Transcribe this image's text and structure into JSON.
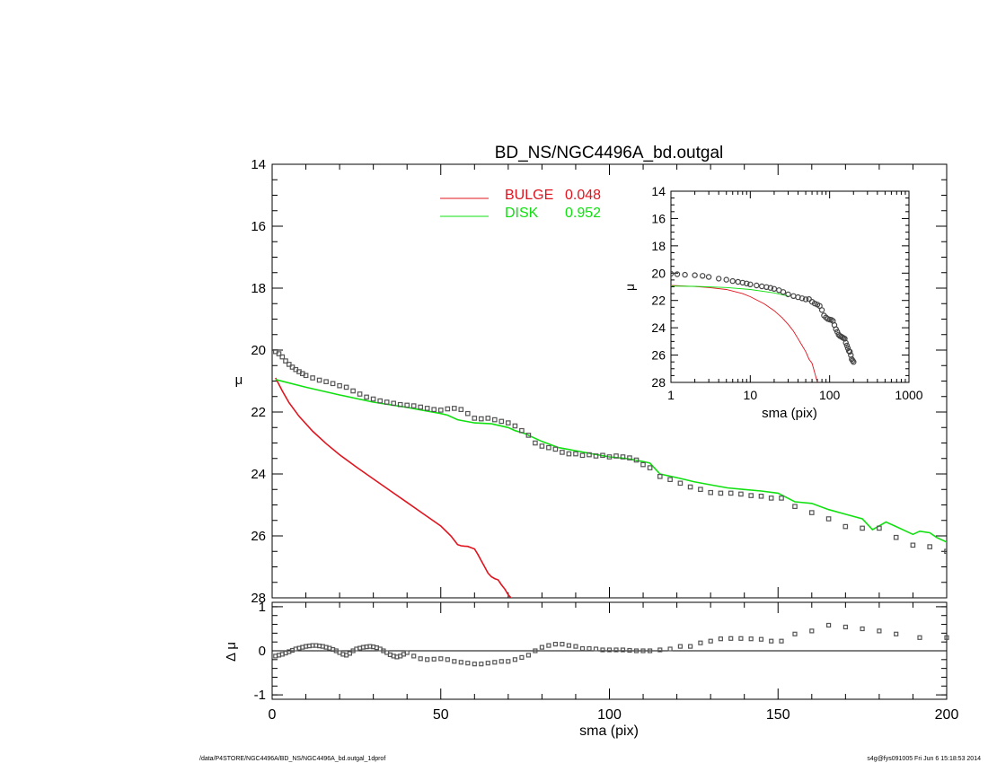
{
  "chart_data": [
    {
      "type": "scatter",
      "panel": "main",
      "title": "BD_NS/NGC4496A_bd.outgal",
      "xlabel": "",
      "ylabel": "μ",
      "xlim": [
        0,
        200
      ],
      "ylim": [
        28,
        14
      ],
      "y_inverted": true,
      "yticks": [
        "14",
        "16",
        "18",
        "20",
        "22",
        "24",
        "26",
        "28"
      ],
      "legend_placement": "top-center",
      "series": [
        {
          "name": "",
          "kind": "points",
          "marker": "open-square",
          "color": "#555555",
          "x": [
            1,
            2,
            3,
            4,
            5,
            6,
            7,
            8,
            9,
            10,
            12,
            14,
            16,
            18,
            20,
            22,
            24,
            26,
            28,
            30,
            32,
            34,
            36,
            38,
            40,
            42,
            44,
            46,
            48,
            50,
            52,
            54,
            56,
            58,
            60,
            62,
            64,
            66,
            68,
            70,
            72,
            74,
            76,
            78,
            80,
            82,
            84,
            86,
            88,
            90,
            92,
            94,
            96,
            98,
            100,
            102,
            104,
            106,
            108,
            110,
            112,
            115,
            118,
            121,
            124,
            127,
            130,
            133,
            136,
            139,
            142,
            145,
            148,
            151,
            155,
            160,
            165,
            170,
            175,
            180,
            185,
            190,
            195,
            200
          ],
          "y": [
            20.05,
            20.12,
            20.22,
            20.35,
            20.46,
            20.55,
            20.63,
            20.7,
            20.76,
            20.82,
            20.9,
            20.97,
            21.02,
            21.08,
            21.15,
            21.2,
            21.32,
            21.42,
            21.52,
            21.58,
            21.64,
            21.68,
            21.72,
            21.76,
            21.78,
            21.8,
            21.84,
            21.88,
            21.92,
            21.94,
            21.9,
            21.88,
            21.92,
            22.05,
            22.2,
            22.22,
            22.2,
            22.25,
            22.3,
            22.35,
            22.45,
            22.6,
            22.75,
            23.0,
            23.1,
            23.15,
            23.2,
            23.3,
            23.35,
            23.35,
            23.4,
            23.38,
            23.42,
            23.4,
            23.45,
            23.42,
            23.45,
            23.48,
            23.55,
            23.7,
            23.8,
            24.08,
            24.18,
            24.3,
            24.42,
            24.5,
            24.6,
            24.62,
            24.62,
            24.65,
            24.7,
            24.72,
            24.78,
            24.78,
            25.05,
            25.25,
            25.45,
            25.7,
            25.75,
            25.75,
            26.05,
            26.3,
            26.35,
            26.5
          ]
        },
        {
          "name": "BULGE",
          "kind": "line",
          "color": "#e0141e",
          "x": [
            1,
            3,
            5,
            8,
            12,
            16,
            20,
            25,
            30,
            35,
            40,
            45,
            50,
            53,
            55,
            56,
            57,
            58,
            59,
            60,
            61,
            62,
            63,
            64,
            65,
            66,
            67,
            68,
            69,
            70,
            71
          ],
          "y": [
            20.9,
            21.32,
            21.7,
            22.14,
            22.62,
            23.02,
            23.38,
            23.78,
            24.16,
            24.54,
            24.92,
            25.3,
            25.68,
            26.0,
            26.28,
            26.32,
            26.33,
            26.34,
            26.38,
            26.42,
            26.6,
            26.8,
            27.0,
            27.2,
            27.32,
            27.38,
            27.42,
            27.58,
            27.72,
            27.9,
            28.02
          ]
        },
        {
          "name": "DISK",
          "kind": "line",
          "color": "#10e010",
          "x": [
            1,
            10,
            20,
            30,
            40,
            45,
            50,
            52,
            55,
            60,
            65,
            70,
            72,
            75,
            80,
            85,
            90,
            95,
            100,
            105,
            110,
            112,
            115,
            120,
            125,
            130,
            135,
            140,
            145,
            150,
            155,
            160,
            165,
            170,
            175,
            178,
            182,
            185,
            190,
            192,
            195,
            197,
            200
          ],
          "y": [
            20.95,
            21.2,
            21.45,
            21.68,
            21.85,
            21.95,
            22.05,
            22.1,
            22.25,
            22.35,
            22.38,
            22.5,
            22.6,
            22.7,
            22.95,
            23.15,
            23.25,
            23.35,
            23.45,
            23.5,
            23.6,
            23.65,
            24.0,
            24.12,
            24.25,
            24.35,
            24.45,
            24.5,
            24.55,
            24.62,
            24.9,
            24.95,
            25.15,
            25.3,
            25.45,
            25.8,
            25.55,
            25.7,
            25.95,
            25.85,
            25.9,
            26.05,
            26.2
          ]
        }
      ],
      "legend": [
        {
          "label": "BULGE",
          "value": "0.048",
          "color": "#e0141e"
        },
        {
          "label": "DISK",
          "value": "0.952",
          "color": "#10e010"
        }
      ]
    },
    {
      "type": "scatter",
      "panel": "inset",
      "xlabel": "sma (pix)",
      "ylabel": "μ",
      "xscale": "log",
      "xlim": [
        1,
        1000
      ],
      "ylim": [
        28,
        14
      ],
      "y_inverted": true,
      "xticks": [
        "1",
        "10",
        "100",
        "1000"
      ],
      "yticks": [
        "14",
        "16",
        "18",
        "20",
        "22",
        "24",
        "26",
        "28"
      ],
      "series": [
        {
          "name": "",
          "kind": "points",
          "marker": "open-circle",
          "color": "#444444",
          "x": [
            1.0,
            1.2,
            1.5,
            2.0,
            2.5,
            3.0,
            4.0,
            5.0,
            6.0,
            7.0,
            8.0,
            9.0,
            10,
            12,
            14,
            16,
            18,
            20,
            23,
            26,
            30,
            35,
            40,
            45,
            50,
            55,
            60,
            65,
            70,
            75,
            80,
            85,
            90,
            95,
            100,
            105,
            110,
            115,
            120,
            125,
            130,
            135,
            140,
            145,
            150,
            155,
            160,
            165,
            170,
            175,
            180,
            185,
            190,
            195,
            200
          ],
          "y": [
            20.05,
            20.08,
            20.12,
            20.15,
            20.2,
            20.28,
            20.4,
            20.48,
            20.58,
            20.64,
            20.7,
            20.76,
            20.82,
            20.9,
            20.97,
            21.02,
            21.08,
            21.15,
            21.25,
            21.38,
            21.55,
            21.68,
            21.76,
            21.84,
            21.92,
            21.9,
            22.1,
            22.22,
            22.3,
            22.4,
            22.7,
            23.1,
            23.25,
            23.35,
            23.4,
            23.42,
            23.5,
            23.8,
            24.1,
            24.3,
            24.5,
            24.6,
            24.65,
            24.7,
            24.75,
            24.8,
            25.1,
            25.3,
            25.5,
            25.7,
            25.75,
            26.0,
            26.3,
            26.4,
            26.5
          ]
        },
        {
          "name": "",
          "kind": "line",
          "color": "#e0141e",
          "x": [
            1,
            2,
            3,
            5,
            8,
            10,
            15,
            20,
            25,
            30,
            35,
            40,
            45,
            50,
            55,
            60,
            65,
            70
          ],
          "y": [
            20.9,
            20.98,
            21.05,
            21.2,
            21.5,
            21.72,
            22.25,
            22.75,
            23.25,
            23.75,
            24.25,
            24.8,
            25.3,
            25.75,
            26.3,
            26.6,
            27.3,
            28.0
          ]
        },
        {
          "name": "",
          "kind": "line",
          "color": "#10e010",
          "x": [
            1,
            2,
            5,
            10,
            20,
            30
          ],
          "y": [
            20.95,
            20.97,
            21.05,
            21.2,
            21.45,
            21.68
          ]
        }
      ]
    },
    {
      "type": "scatter",
      "panel": "residual",
      "xlabel": "sma (pix)",
      "ylabel": "Δ μ",
      "xlim": [
        0,
        200
      ],
      "ylim": [
        -1.1,
        1.1
      ],
      "xticks": [
        "0",
        "50",
        "100",
        "150",
        "200"
      ],
      "yticks": [
        "-1",
        "0",
        "1"
      ],
      "zero_line": true,
      "series": [
        {
          "name": "",
          "kind": "points",
          "marker": "open-square",
          "color": "#555555",
          "x": [
            1,
            2,
            3,
            4,
            5,
            6,
            7,
            8,
            9,
            10,
            11,
            12,
            13,
            14,
            15,
            16,
            17,
            18,
            19,
            20,
            21,
            22,
            23,
            24,
            25,
            26,
            27,
            28,
            29,
            30,
            31,
            32,
            33,
            34,
            35,
            36,
            37,
            38,
            39,
            40,
            42,
            44,
            46,
            48,
            50,
            52,
            54,
            56,
            58,
            60,
            62,
            64,
            66,
            68,
            70,
            72,
            74,
            76,
            78,
            80,
            82,
            84,
            86,
            88,
            90,
            92,
            94,
            96,
            98,
            100,
            102,
            104,
            106,
            108,
            110,
            112,
            115,
            118,
            121,
            124,
            127,
            130,
            133,
            136,
            139,
            142,
            145,
            148,
            151,
            155,
            160,
            165,
            170,
            175,
            180,
            185,
            192,
            200
          ],
          "y": [
            -0.12,
            -0.1,
            -0.08,
            -0.05,
            -0.02,
            0.01,
            0.04,
            0.06,
            0.08,
            0.1,
            0.11,
            0.12,
            0.12,
            0.11,
            0.1,
            0.08,
            0.06,
            0.03,
            0.0,
            -0.04,
            -0.08,
            -0.1,
            -0.06,
            0.0,
            0.04,
            0.06,
            0.08,
            0.09,
            0.1,
            0.09,
            0.07,
            0.04,
            0.0,
            -0.04,
            -0.09,
            -0.12,
            -0.14,
            -0.12,
            -0.08,
            -0.04,
            -0.12,
            -0.18,
            -0.2,
            -0.19,
            -0.18,
            -0.2,
            -0.24,
            -0.26,
            -0.28,
            -0.3,
            -0.3,
            -0.28,
            -0.26,
            -0.24,
            -0.24,
            -0.2,
            -0.15,
            -0.1,
            0.0,
            0.08,
            0.12,
            0.15,
            0.15,
            0.12,
            0.1,
            0.05,
            0.05,
            0.04,
            0.02,
            0.02,
            0.02,
            0.02,
            0.01,
            0.0,
            0.0,
            0.0,
            0.02,
            0.04,
            0.1,
            0.1,
            0.18,
            0.22,
            0.27,
            0.28,
            0.28,
            0.27,
            0.26,
            0.22,
            0.22,
            0.38,
            0.45,
            0.58,
            0.54,
            0.5,
            0.45,
            0.38,
            0.3,
            0.3
          ]
        }
      ]
    }
  ],
  "footer": {
    "left": "/data/P4STORE/NGC4496A/BD_NS/NGC4496A_bd.outgal_1dprof",
    "right": "s4g@fys091005  Fri Jun  6 15:18:53 2014"
  }
}
